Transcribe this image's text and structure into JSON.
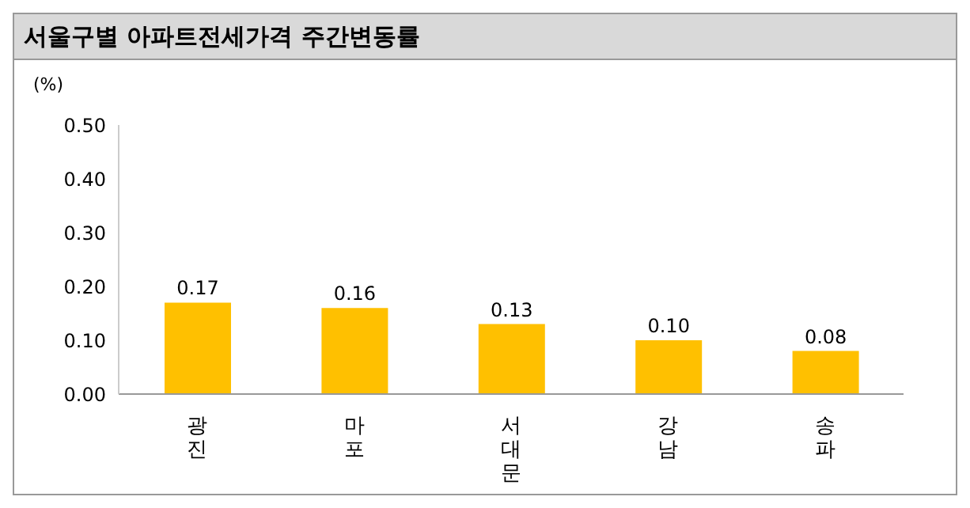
{
  "chart_data": {
    "type": "bar",
    "title": "서울구별 아파트전세가격 주간변동률",
    "ylabel": "(%)",
    "categories": [
      "광진",
      "마포",
      "서대문",
      "강남",
      "송파"
    ],
    "values": [
      0.17,
      0.16,
      0.13,
      0.1,
      0.08
    ],
    "value_labels": [
      "0.17",
      "0.16",
      "0.13",
      "0.10",
      "0.08"
    ],
    "color": "#ffc000",
    "ylim": [
      0,
      0.5
    ],
    "yticks": [
      {
        "value": 0,
        "label": "0.00"
      },
      {
        "value": 0.1,
        "label": "0.10"
      },
      {
        "value": 0.2,
        "label": "0.20"
      },
      {
        "value": 0.3,
        "label": "0.30"
      },
      {
        "value": 0.4,
        "label": "0.40"
      },
      {
        "value": 0.5,
        "label": "0.50"
      }
    ],
    "grid": false
  }
}
